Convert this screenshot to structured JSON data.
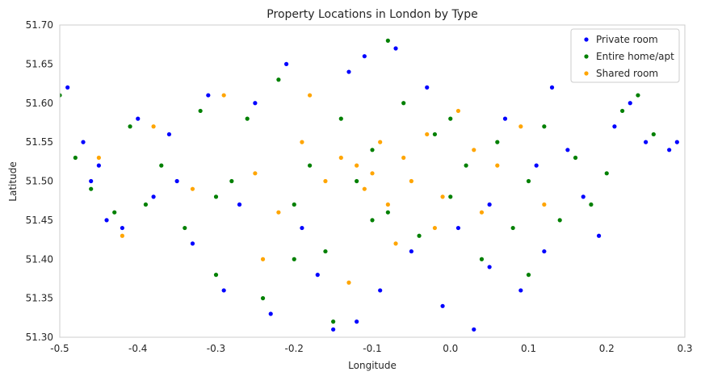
{
  "chart_data": {
    "type": "scatter",
    "title": "Property Locations in London by Type",
    "xlabel": "Longitude",
    "ylabel": "Latitude",
    "xlim": [
      -0.5,
      0.3
    ],
    "ylim": [
      51.3,
      51.7
    ],
    "xticks": [
      "-0.5",
      "-0.4",
      "-0.3",
      "-0.2",
      "-0.1",
      "0.0",
      "0.1",
      "0.2",
      "0.3"
    ],
    "yticks": [
      "51.30",
      "51.35",
      "51.40",
      "51.45",
      "51.50",
      "51.55",
      "51.60",
      "51.65",
      "51.70"
    ],
    "grid": false,
    "legend_position": "top-right",
    "series": [
      {
        "name": "Private room",
        "color": "#0000ff",
        "points": [
          [
            -0.49,
            51.62
          ],
          [
            -0.47,
            51.55
          ],
          [
            -0.45,
            51.52
          ],
          [
            -0.44,
            51.45
          ],
          [
            -0.42,
            51.44
          ],
          [
            -0.4,
            51.58
          ],
          [
            -0.38,
            51.48
          ],
          [
            -0.36,
            51.56
          ],
          [
            -0.33,
            51.42
          ],
          [
            -0.31,
            51.61
          ],
          [
            -0.29,
            51.36
          ],
          [
            -0.27,
            51.47
          ],
          [
            -0.25,
            51.6
          ],
          [
            -0.23,
            51.33
          ],
          [
            -0.21,
            51.65
          ],
          [
            -0.19,
            51.44
          ],
          [
            -0.17,
            51.38
          ],
          [
            -0.15,
            51.31
          ],
          [
            -0.13,
            51.64
          ],
          [
            -0.11,
            51.66
          ],
          [
            -0.09,
            51.36
          ],
          [
            -0.07,
            51.67
          ],
          [
            -0.05,
            51.41
          ],
          [
            -0.03,
            51.62
          ],
          [
            -0.01,
            51.34
          ],
          [
            0.01,
            51.44
          ],
          [
            0.03,
            51.31
          ],
          [
            0.05,
            51.39
          ],
          [
            0.07,
            51.58
          ],
          [
            0.09,
            51.36
          ],
          [
            0.11,
            51.52
          ],
          [
            0.13,
            51.62
          ],
          [
            0.15,
            51.54
          ],
          [
            0.17,
            51.48
          ],
          [
            0.19,
            51.43
          ],
          [
            0.21,
            51.57
          ],
          [
            0.23,
            51.6
          ],
          [
            0.25,
            51.55
          ],
          [
            0.28,
            51.54
          ],
          [
            0.29,
            51.55
          ],
          [
            -0.46,
            51.5
          ],
          [
            -0.35,
            51.5
          ],
          [
            0.05,
            51.47
          ],
          [
            -0.12,
            51.32
          ],
          [
            0.12,
            51.41
          ]
        ]
      },
      {
        "name": "Entire home/apt",
        "color": "#008000",
        "points": [
          [
            -0.5,
            51.61
          ],
          [
            -0.48,
            51.53
          ],
          [
            -0.46,
            51.49
          ],
          [
            -0.43,
            51.46
          ],
          [
            -0.41,
            51.57
          ],
          [
            -0.39,
            51.47
          ],
          [
            -0.37,
            51.52
          ],
          [
            -0.34,
            51.44
          ],
          [
            -0.32,
            51.59
          ],
          [
            -0.3,
            51.38
          ],
          [
            -0.28,
            51.5
          ],
          [
            -0.26,
            51.58
          ],
          [
            -0.24,
            51.35
          ],
          [
            -0.22,
            51.63
          ],
          [
            -0.2,
            51.47
          ],
          [
            -0.18,
            51.52
          ],
          [
            -0.16,
            51.41
          ],
          [
            -0.14,
            51.58
          ],
          [
            -0.12,
            51.5
          ],
          [
            -0.1,
            51.54
          ],
          [
            -0.08,
            51.46
          ],
          [
            -0.06,
            51.6
          ],
          [
            -0.04,
            51.43
          ],
          [
            -0.02,
            51.56
          ],
          [
            0.0,
            51.48
          ],
          [
            0.02,
            51.52
          ],
          [
            0.04,
            51.4
          ],
          [
            0.06,
            51.55
          ],
          [
            0.08,
            51.44
          ],
          [
            0.1,
            51.5
          ],
          [
            0.12,
            51.57
          ],
          [
            0.14,
            51.45
          ],
          [
            0.16,
            51.53
          ],
          [
            0.18,
            51.47
          ],
          [
            0.2,
            51.51
          ],
          [
            0.22,
            51.59
          ],
          [
            0.24,
            51.61
          ],
          [
            0.26,
            51.56
          ],
          [
            -0.08,
            51.68
          ],
          [
            -0.15,
            51.32
          ],
          [
            -0.1,
            51.45
          ],
          [
            -0.2,
            51.4
          ],
          [
            0.0,
            51.58
          ],
          [
            -0.3,
            51.48
          ],
          [
            0.1,
            51.38
          ]
        ]
      },
      {
        "name": "Shared room",
        "color": "#ffa500",
        "points": [
          [
            -0.45,
            51.53
          ],
          [
            -0.42,
            51.43
          ],
          [
            -0.38,
            51.57
          ],
          [
            -0.33,
            51.49
          ],
          [
            -0.29,
            51.61
          ],
          [
            -0.25,
            51.51
          ],
          [
            -0.22,
            51.46
          ],
          [
            -0.19,
            51.55
          ],
          [
            -0.16,
            51.5
          ],
          [
            -0.14,
            51.53
          ],
          [
            -0.12,
            51.52
          ],
          [
            -0.11,
            51.49
          ],
          [
            -0.1,
            51.51
          ],
          [
            -0.09,
            51.55
          ],
          [
            -0.08,
            51.47
          ],
          [
            -0.06,
            51.53
          ],
          [
            -0.05,
            51.5
          ],
          [
            -0.03,
            51.56
          ],
          [
            -0.01,
            51.48
          ],
          [
            0.01,
            51.59
          ],
          [
            0.03,
            51.54
          ],
          [
            0.06,
            51.52
          ],
          [
            0.09,
            51.57
          ],
          [
            0.12,
            51.47
          ],
          [
            -0.13,
            51.37
          ],
          [
            -0.07,
            51.42
          ],
          [
            -0.18,
            51.61
          ],
          [
            -0.24,
            51.4
          ],
          [
            0.04,
            51.46
          ],
          [
            -0.02,
            51.44
          ]
        ]
      }
    ]
  }
}
